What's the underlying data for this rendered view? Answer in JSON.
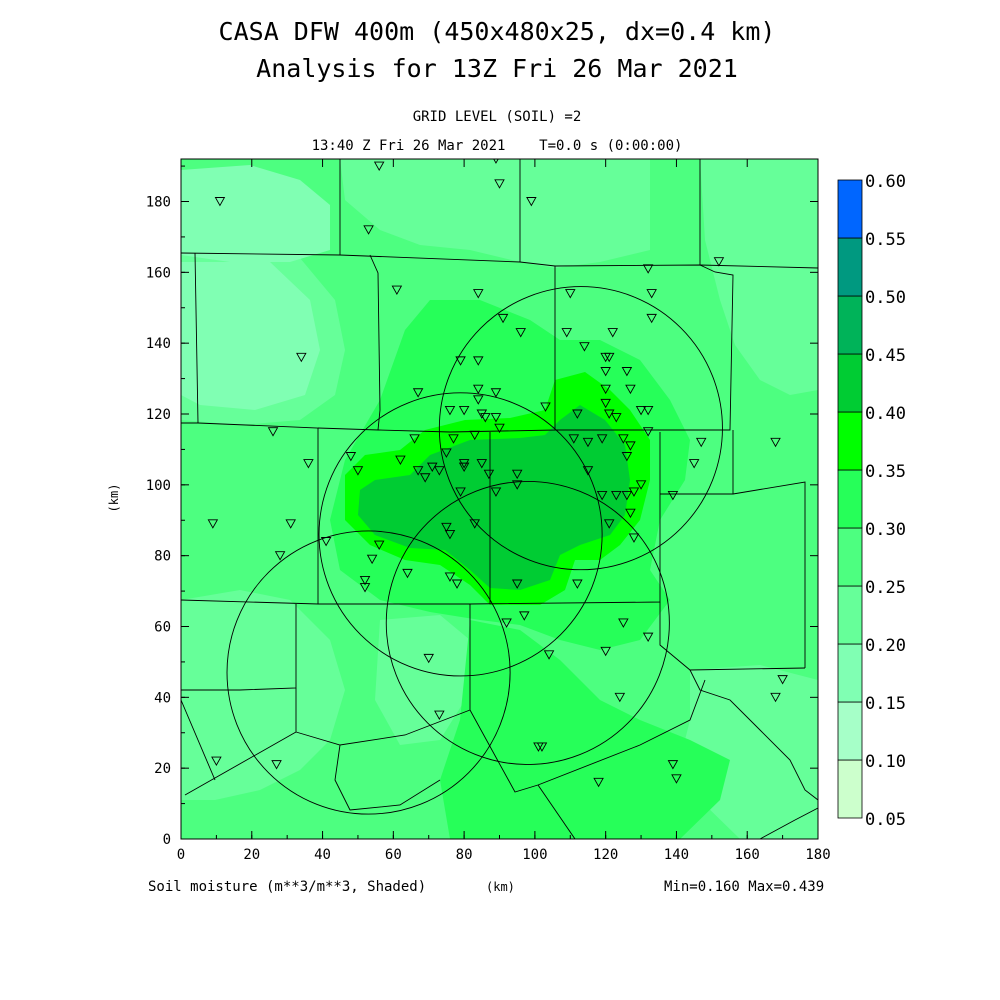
{
  "title_line1": "CASA DFW 400m (450x480x25, dx=0.4 km)",
  "title_line2": "Analysis for 13Z Fri 26 Mar 2021",
  "subtitle_line1": "GRID LEVEL (SOIL) =2",
  "subtitle_line2": "13:40 Z Fri 26 Mar 2021    T=0.0 s (0:00:00)",
  "footer": {
    "left": "Soil moisture (m**3/m**3, Shaded)",
    "center": "(km)",
    "right": "Min=0.160 Max=0.439"
  },
  "axes": {
    "xlabel": "(km)",
    "ylabel": "(km)",
    "xlim": [
      0,
      180
    ],
    "ylim": [
      0,
      192
    ],
    "xticks": [
      "0",
      "20",
      "40",
      "60",
      "80",
      "100",
      "120",
      "140",
      "160",
      "180"
    ],
    "yticks": [
      "0",
      "20",
      "40",
      "60",
      "80",
      "100",
      "120",
      "140",
      "160",
      "180"
    ]
  },
  "colorbar": {
    "levels": [
      "0.05",
      "0.10",
      "0.15",
      "0.20",
      "0.25",
      "0.30",
      "0.35",
      "0.40",
      "0.45",
      "0.50",
      "0.55",
      "0.60"
    ],
    "colors": [
      "#ccffcc",
      "#a6ffc8",
      "#80ffb3",
      "#66ff99",
      "#4dff80",
      "#26ff59",
      "#00ff00",
      "#00cc33",
      "#00b359",
      "#009980",
      "#0066ff"
    ]
  },
  "field_colors": {
    "c015": "#80ffb3",
    "c020": "#66ff99",
    "c025": "#4dff80",
    "c030": "#26ff59",
    "c035": "#00ff00",
    "c040": "#00cc33"
  },
  "radar_circles_km": [
    {
      "x": 53,
      "y": 47,
      "r": 40
    },
    {
      "x": 79,
      "y": 86,
      "r": 40
    },
    {
      "x": 113,
      "y": 116,
      "r": 40
    },
    {
      "x": 98,
      "y": 61,
      "r": 40
    }
  ],
  "stations_km": [
    [
      11,
      180
    ],
    [
      56,
      190
    ],
    [
      89,
      192
    ],
    [
      90,
      185
    ],
    [
      99,
      180
    ],
    [
      53,
      172
    ],
    [
      152,
      163
    ],
    [
      132,
      161
    ],
    [
      133,
      154
    ],
    [
      61,
      155
    ],
    [
      84,
      154
    ],
    [
      110,
      154
    ],
    [
      133,
      147
    ],
    [
      91,
      147
    ],
    [
      34,
      136
    ],
    [
      109,
      143
    ],
    [
      122,
      143
    ],
    [
      96,
      143
    ],
    [
      114,
      139
    ],
    [
      79,
      135
    ],
    [
      84,
      135
    ],
    [
      120,
      136
    ],
    [
      121,
      136
    ],
    [
      126,
      132
    ],
    [
      120,
      132
    ],
    [
      120,
      127
    ],
    [
      67,
      126
    ],
    [
      84,
      127
    ],
    [
      89,
      126
    ],
    [
      84,
      124
    ],
    [
      127,
      127
    ],
    [
      120,
      123
    ],
    [
      130,
      121
    ],
    [
      132,
      121
    ],
    [
      76,
      121
    ],
    [
      80,
      121
    ],
    [
      85,
      120
    ],
    [
      86,
      119
    ],
    [
      89,
      119
    ],
    [
      103,
      122
    ],
    [
      123,
      119
    ],
    [
      90,
      116
    ],
    [
      112,
      120
    ],
    [
      121,
      120
    ],
    [
      132,
      115
    ],
    [
      26,
      115
    ],
    [
      66,
      113
    ],
    [
      77,
      113
    ],
    [
      83,
      114
    ],
    [
      111,
      113
    ],
    [
      119,
      113
    ],
    [
      125,
      113
    ],
    [
      115,
      112
    ],
    [
      147,
      112
    ],
    [
      168,
      112
    ],
    [
      75,
      109
    ],
    [
      127,
      111
    ],
    [
      126,
      108
    ],
    [
      48,
      108
    ],
    [
      62,
      107
    ],
    [
      80,
      106
    ],
    [
      80,
      105
    ],
    [
      85,
      106
    ],
    [
      36,
      106
    ],
    [
      145,
      106
    ],
    [
      67,
      104
    ],
    [
      71,
      105
    ],
    [
      73,
      104
    ],
    [
      50,
      104
    ],
    [
      69,
      102
    ],
    [
      87,
      103
    ],
    [
      95,
      103
    ],
    [
      115,
      104
    ],
    [
      95,
      100
    ],
    [
      128,
      98
    ],
    [
      139,
      97
    ],
    [
      119,
      97
    ],
    [
      79,
      98
    ],
    [
      121,
      89
    ],
    [
      123,
      97
    ],
    [
      126,
      97
    ],
    [
      130,
      100
    ],
    [
      89,
      98
    ],
    [
      127,
      92
    ],
    [
      9,
      89
    ],
    [
      31,
      89
    ],
    [
      75,
      88
    ],
    [
      76,
      86
    ],
    [
      83,
      89
    ],
    [
      128,
      85
    ],
    [
      41,
      84
    ],
    [
      56,
      83
    ],
    [
      28,
      80
    ],
    [
      54,
      79
    ],
    [
      64,
      75
    ],
    [
      52,
      73
    ],
    [
      52,
      71
    ],
    [
      76,
      74
    ],
    [
      78,
      72
    ],
    [
      95,
      72
    ],
    [
      112,
      72
    ],
    [
      92,
      61
    ],
    [
      97,
      63
    ],
    [
      125,
      61
    ],
    [
      132,
      57
    ],
    [
      120,
      53
    ],
    [
      104,
      52
    ],
    [
      70,
      51
    ],
    [
      170,
      45
    ],
    [
      168,
      40
    ],
    [
      124,
      40
    ],
    [
      73,
      35
    ],
    [
      101,
      26
    ],
    [
      102,
      26
    ],
    [
      10,
      22
    ],
    [
      27,
      21
    ],
    [
      139,
      21
    ],
    [
      140,
      17
    ],
    [
      118,
      16
    ]
  ]
}
